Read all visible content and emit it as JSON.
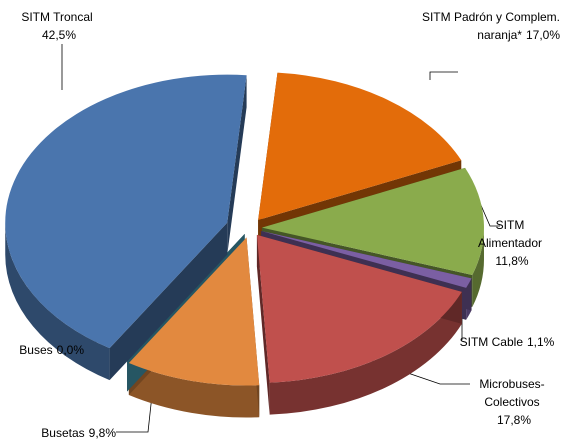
{
  "chart_data": {
    "type": "pie3d",
    "categories": [
      "SITM Padrón y Complem. naranja*",
      "SITM Alimentador",
      "SITM Cable",
      "Microbuses-Colectivos",
      "Busetas",
      "Buses",
      "SITM Troncal"
    ],
    "values": [
      17.0,
      11.8,
      1.1,
      17.8,
      9.8,
      0.0,
      42.5
    ],
    "value_labels": [
      "17,0%",
      "11,8%",
      "1,1%",
      "17,8%",
      "9,8%",
      "0,0%",
      "42,5%"
    ],
    "colors": [
      "#e36c0a",
      "#8aab4c",
      "#7b5fa3",
      "#c0504d",
      "#e2893f",
      "#4bacc6",
      "#4a75ad"
    ]
  }
}
